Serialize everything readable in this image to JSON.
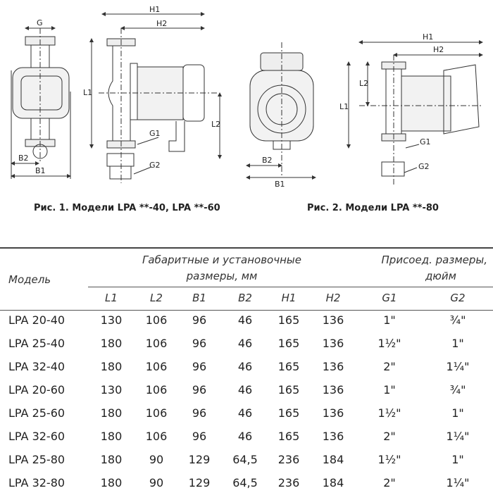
{
  "figures": [
    {
      "caption": "Рис. 1. Модели LPA **-40, LPA **-60",
      "labels": {
        "G": "G",
        "B1": "B1",
        "B2": "B2",
        "H1": "H1",
        "H2": "H2",
        "L1": "L1",
        "L2": "L2",
        "G1": "G1",
        "G2": "G2"
      }
    },
    {
      "caption": "Рис. 2. Модели LPA **-80",
      "labels": {
        "B1": "B1",
        "B2": "B2",
        "H1": "H1",
        "H2": "H2",
        "L1": "L1",
        "L2": "L2",
        "G1": "G1",
        "G2": "G2"
      }
    }
  ],
  "table": {
    "model_header": "Модель",
    "group1_header": [
      "Габаритные и установочные",
      "размеры, мм"
    ],
    "group2_header": [
      "Присоед. размеры,",
      "дюйм"
    ],
    "columns": [
      "L1",
      "L2",
      "B1",
      "B2",
      "H1",
      "H2",
      "G1",
      "G2"
    ],
    "rows": [
      {
        "model": "LPA 20-40",
        "values": [
          "130",
          "106",
          "96",
          "46",
          "165",
          "136",
          "1\"",
          "¾\""
        ]
      },
      {
        "model": "LPA 25-40",
        "values": [
          "180",
          "106",
          "96",
          "46",
          "165",
          "136",
          "1½\"",
          "1\""
        ]
      },
      {
        "model": "LPA 32-40",
        "values": [
          "180",
          "106",
          "96",
          "46",
          "165",
          "136",
          "2\"",
          "1¼\""
        ]
      },
      {
        "model": "LPA 20-60",
        "values": [
          "130",
          "106",
          "96",
          "46",
          "165",
          "136",
          "1\"",
          "¾\""
        ]
      },
      {
        "model": "LPA 25-60",
        "values": [
          "180",
          "106",
          "96",
          "46",
          "165",
          "136",
          "1½\"",
          "1\""
        ]
      },
      {
        "model": "LPA 32-60",
        "values": [
          "180",
          "106",
          "96",
          "46",
          "165",
          "136",
          "2\"",
          "1¼\""
        ]
      },
      {
        "model": "LPA 25-80",
        "values": [
          "180",
          "90",
          "129",
          "64,5",
          "236",
          "184",
          "1½\"",
          "1\""
        ]
      },
      {
        "model": "LPA 32-80",
        "values": [
          "180",
          "90",
          "129",
          "64,5",
          "236",
          "184",
          "2\"",
          "1¼\""
        ]
      }
    ]
  }
}
